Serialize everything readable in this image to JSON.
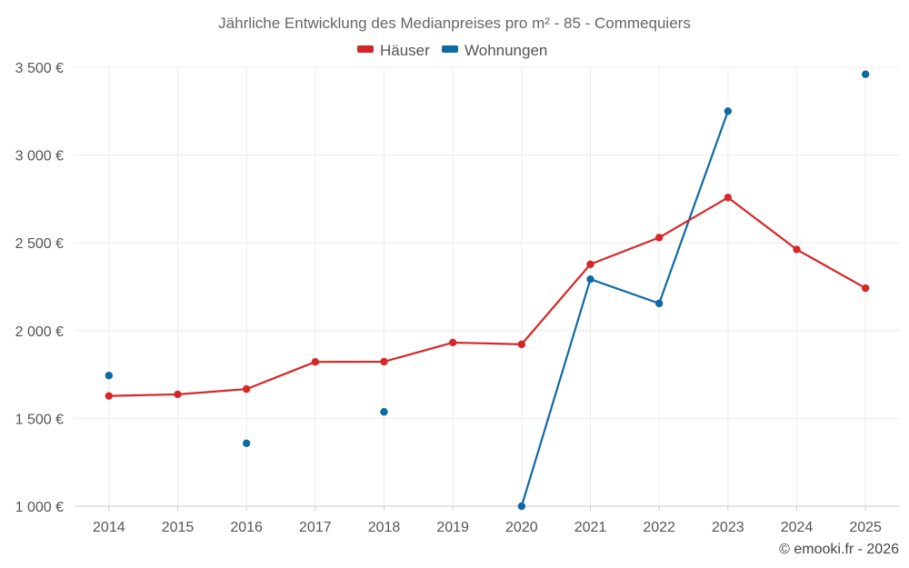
{
  "chart_data": {
    "type": "line",
    "title": "Jährliche Entwicklung des Medianpreises pro m² - 85 - Commequiers",
    "xlabel": "",
    "ylabel": "",
    "categories": [
      "2014",
      "2015",
      "2016",
      "2017",
      "2018",
      "2019",
      "2020",
      "2021",
      "2022",
      "2023",
      "2024",
      "2025"
    ],
    "ylim": [
      1000,
      3500
    ],
    "yticks": [
      1000,
      1500,
      2000,
      2500,
      3000,
      3500
    ],
    "ytick_labels": [
      "1 000 €",
      "1 500 €",
      "2 000 €",
      "2 500 €",
      "3 000 €",
      "3 500 €"
    ],
    "grid": true,
    "legend_position": "top-center",
    "series": [
      {
        "name": "Häuser",
        "color": "#d62728",
        "values": [
          1628,
          1637,
          1667,
          1822,
          1823,
          1932,
          1922,
          2378,
          2530,
          2758,
          2462,
          2242
        ]
      },
      {
        "name": "Wohnungen",
        "color": "#0f6aa3",
        "values": [
          1744,
          null,
          1358,
          null,
          1537,
          null,
          1000,
          2293,
          2155,
          3250,
          null,
          3460
        ]
      }
    ]
  },
  "credit": "© emooki.fr - 2026"
}
